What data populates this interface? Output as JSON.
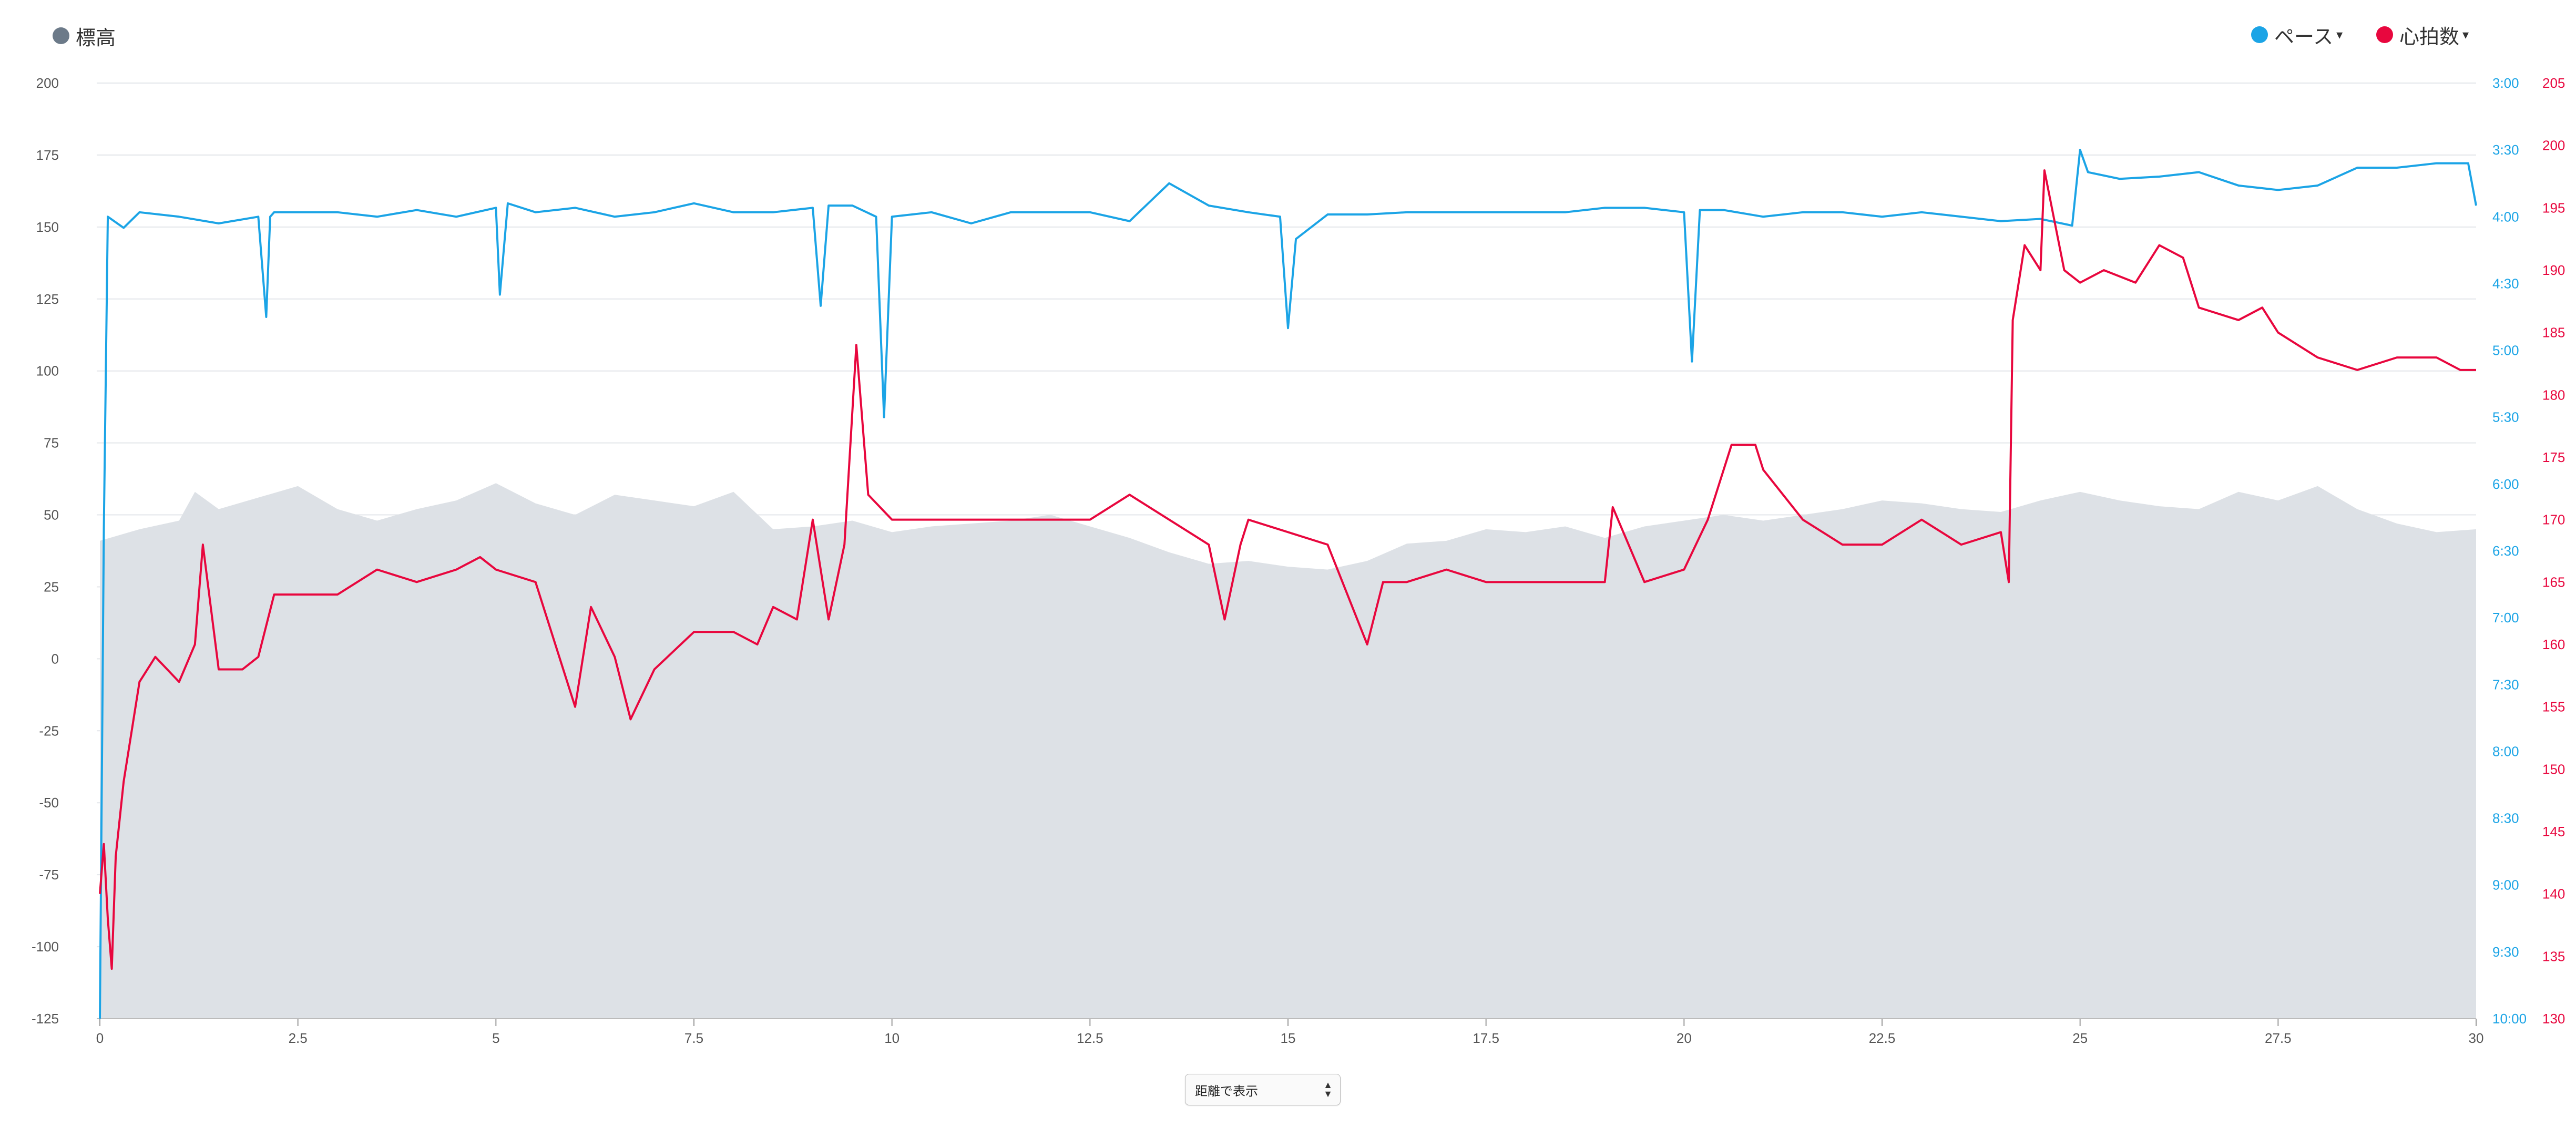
{
  "legend": {
    "elevation": {
      "label": "標高",
      "color": "#6c7a89"
    },
    "pace": {
      "label": "ペース",
      "color": "#1ba4e6",
      "caret": "▾"
    },
    "heart_rate": {
      "label": "心拍数",
      "color": "#e8073e",
      "caret": "▾"
    }
  },
  "view_select": {
    "label": "距離で表示",
    "arrows": "▲▼"
  },
  "chart_data": {
    "type": "line",
    "x_axis": {
      "min": 0,
      "max": 30,
      "ticks": [
        "0",
        "2.5",
        "5",
        "7.5",
        "10",
        "12.5",
        "15",
        "17.5",
        "20",
        "22.5",
        "25",
        "27.5",
        "30"
      ]
    },
    "y_axis_elevation": {
      "min": -125,
      "max": 200,
      "ticks": [
        "200",
        "175",
        "150",
        "125",
        "100",
        "75",
        "50",
        "25",
        "0",
        "-25",
        "-50",
        "-75",
        "-100",
        "-125"
      ]
    },
    "y_axis_pace": {
      "min_seconds": 180,
      "max_seconds": 600,
      "ticks": [
        "3:00",
        "3:30",
        "4:00",
        "4:30",
        "5:00",
        "5:30",
        "6:00",
        "6:30",
        "7:00",
        "7:30",
        "8:00",
        "8:30",
        "9:00",
        "9:30",
        "10:00"
      ]
    },
    "y_axis_heart_rate": {
      "min": 130,
      "max": 205,
      "ticks": [
        "205",
        "200",
        "195",
        "190",
        "185",
        "180",
        "175",
        "170",
        "165",
        "160",
        "155",
        "150",
        "145",
        "140",
        "135",
        "130"
      ]
    },
    "grid": true,
    "series": [
      {
        "name": "標高",
        "type": "area",
        "color": "#dde1e6",
        "x": [
          0,
          0.5,
          1,
          1.2,
          1.5,
          2,
          2.5,
          3,
          3.5,
          4,
          4.5,
          5,
          5.5,
          6,
          6.5,
          7,
          7.5,
          8,
          8.5,
          9,
          9.5,
          10,
          10.5,
          11,
          11.5,
          12,
          12.5,
          13,
          13.5,
          14,
          14.5,
          15,
          15.5,
          16,
          16.5,
          17,
          17.5,
          18,
          18.5,
          19,
          19.5,
          20,
          20.5,
          21,
          21.5,
          22,
          22.5,
          23,
          23.5,
          24,
          24.5,
          25,
          25.5,
          26,
          26.5,
          27,
          27.5,
          28,
          28.5,
          29,
          29.5,
          30
        ],
        "y": [
          41,
          45,
          48,
          58,
          52,
          56,
          60,
          52,
          48,
          52,
          55,
          61,
          54,
          50,
          57,
          55,
          53,
          58,
          45,
          46,
          48,
          44,
          46,
          47,
          48,
          50,
          46,
          42,
          37,
          33,
          34,
          32,
          31,
          34,
          40,
          41,
          45,
          44,
          46,
          42,
          46,
          48,
          50,
          48,
          50,
          52,
          55,
          54,
          52,
          51,
          55,
          58,
          55,
          53,
          52,
          58,
          55,
          60,
          52,
          47,
          44,
          45
        ]
      },
      {
        "name": "ペース",
        "type": "line",
        "color": "#1ba4e6",
        "unit": "min/km",
        "x": [
          0,
          0.05,
          0.1,
          0.3,
          0.5,
          1,
          1.5,
          2,
          2.1,
          2.15,
          2.2,
          2.5,
          3,
          3.5,
          4,
          4.5,
          5,
          5.05,
          5.15,
          5.5,
          6,
          6.5,
          7,
          7.5,
          8,
          8.5,
          9,
          9.1,
          9.2,
          9.5,
          9.8,
          9.9,
          10,
          10.5,
          11,
          11.5,
          12,
          12.5,
          13,
          13.5,
          14,
          14.5,
          14.9,
          15,
          15.1,
          15.5,
          16,
          16.5,
          17,
          17.5,
          18,
          18.5,
          19,
          19.5,
          20,
          20.1,
          20.2,
          20.5,
          21,
          21.5,
          22,
          22.5,
          23,
          23.5,
          24,
          24.5,
          24.9,
          25,
          25.1,
          25.5,
          26,
          26.5,
          27,
          27.5,
          28,
          28.5,
          29,
          29.5,
          29.9,
          30
        ],
        "y": [
          "10:00",
          "6:20",
          "4:00",
          "4:05",
          "3:58",
          "4:00",
          "4:03",
          "4:00",
          "4:45",
          "4:00",
          "3:58",
          "3:58",
          "3:58",
          "4:00",
          "3:57",
          "4:00",
          "3:56",
          "4:35",
          "3:54",
          "3:58",
          "3:56",
          "4:00",
          "3:58",
          "3:54",
          "3:58",
          "3:58",
          "3:56",
          "4:40",
          "3:55",
          "3:55",
          "4:00",
          "5:30",
          "4:00",
          "3:58",
          "4:03",
          "3:58",
          "3:58",
          "3:58",
          "4:02",
          "3:45",
          "3:55",
          "3:58",
          "4:00",
          "4:50",
          "4:10",
          "3:59",
          "3:59",
          "3:58",
          "3:58",
          "3:58",
          "3:58",
          "3:58",
          "3:56",
          "3:56",
          "3:58",
          "5:05",
          "3:57",
          "3:57",
          "4:00",
          "3:58",
          "3:58",
          "4:00",
          "3:58",
          "4:00",
          "4:02",
          "4:01",
          "4:04",
          "3:30",
          "3:40",
          "3:43",
          "3:42",
          "3:40",
          "3:46",
          "3:48",
          "3:46",
          "3:38",
          "3:38",
          "3:36",
          "3:36",
          "3:55"
        ]
      },
      {
        "name": "心拍数",
        "type": "line",
        "color": "#e8073e",
        "unit": "bpm",
        "x": [
          0,
          0.05,
          0.1,
          0.15,
          0.2,
          0.3,
          0.5,
          0.7,
          1,
          1.2,
          1.3,
          1.5,
          1.8,
          2,
          2.2,
          2.5,
          3,
          3.5,
          4,
          4.5,
          4.8,
          5,
          5.5,
          6,
          6.2,
          6.5,
          6.7,
          7,
          7.5,
          8,
          8.3,
          8.5,
          8.8,
          9,
          9.2,
          9.4,
          9.55,
          9.7,
          10,
          10.5,
          11,
          11.5,
          12,
          12.5,
          13,
          13.5,
          14,
          14.2,
          14.4,
          14.5,
          15,
          15.5,
          16,
          16.2,
          16.5,
          17,
          17.5,
          18,
          18.5,
          19,
          19.1,
          19.5,
          20,
          20.3,
          20.6,
          20.9,
          21,
          21.5,
          22,
          22.5,
          23,
          23.5,
          24,
          24.1,
          24.15,
          24.3,
          24.5,
          24.55,
          24.8,
          25,
          25.3,
          25.7,
          25.8,
          26,
          26.3,
          26.5,
          27,
          27.3,
          27.5,
          28,
          28.5,
          29,
          29.5,
          29.8,
          30
        ],
        "y": [
          140,
          144,
          138,
          134,
          143,
          149,
          157,
          159,
          157,
          160,
          168,
          158,
          158,
          159,
          164,
          164,
          164,
          166,
          165,
          166,
          167,
          166,
          165,
          155,
          163,
          159,
          154,
          158,
          161,
          161,
          160,
          163,
          162,
          170,
          162,
          168,
          184,
          172,
          170,
          170,
          170,
          170,
          170,
          170,
          172,
          170,
          168,
          162,
          168,
          170,
          169,
          168,
          160,
          165,
          165,
          166,
          165,
          165,
          165,
          165,
          171,
          165,
          166,
          170,
          176,
          176,
          174,
          170,
          168,
          168,
          170,
          168,
          169,
          165,
          186,
          192,
          190,
          198,
          190,
          189,
          190,
          189,
          190,
          192,
          191,
          187,
          186,
          187,
          185,
          183,
          182,
          183,
          183,
          182,
          182
        ]
      }
    ]
  }
}
